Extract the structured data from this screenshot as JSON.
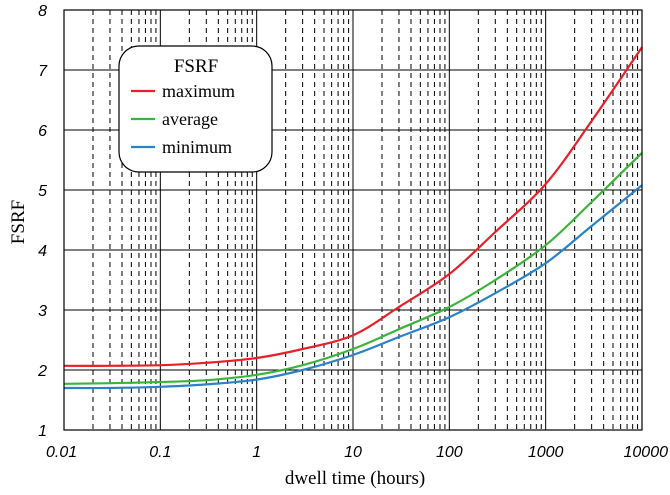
{
  "chart_data": {
    "type": "line",
    "title": "",
    "xlabel": "dwell time (hours)",
    "ylabel": "FSRF",
    "x_scale": "log",
    "xlim": [
      0.01,
      10000
    ],
    "ylim": [
      1,
      8
    ],
    "x_ticks": [
      "0.01",
      "0.1",
      "1",
      "10",
      "100",
      "1000",
      "10000"
    ],
    "y_ticks": [
      "1",
      "2",
      "3",
      "4",
      "5",
      "6",
      "7",
      "8"
    ],
    "grid": {
      "major": "solid",
      "minor_x": "dashed"
    },
    "legend": {
      "title": "FSRF",
      "placement": "top-left"
    },
    "series": [
      {
        "name": "maximum",
        "color": "#e8202a",
        "points": [
          [
            0.01,
            2.07
          ],
          [
            0.03,
            2.07
          ],
          [
            0.1,
            2.08
          ],
          [
            0.3,
            2.12
          ],
          [
            1,
            2.2
          ],
          [
            3,
            2.35
          ],
          [
            10,
            2.58
          ],
          [
            30,
            3.05
          ],
          [
            100,
            3.6
          ],
          [
            300,
            4.3
          ],
          [
            1000,
            5.1
          ],
          [
            3000,
            6.15
          ],
          [
            10000,
            7.38
          ]
        ]
      },
      {
        "name": "average",
        "color": "#3cb43c",
        "points": [
          [
            0.01,
            1.77
          ],
          [
            0.03,
            1.78
          ],
          [
            0.1,
            1.8
          ],
          [
            0.3,
            1.83
          ],
          [
            1,
            1.92
          ],
          [
            3,
            2.08
          ],
          [
            10,
            2.35
          ],
          [
            30,
            2.68
          ],
          [
            100,
            3.05
          ],
          [
            300,
            3.5
          ],
          [
            1000,
            4.08
          ],
          [
            3000,
            4.8
          ],
          [
            10000,
            5.62
          ]
        ]
      },
      {
        "name": "minimum",
        "color": "#2a82c8",
        "points": [
          [
            0.01,
            1.7
          ],
          [
            0.03,
            1.7
          ],
          [
            0.1,
            1.72
          ],
          [
            0.3,
            1.76
          ],
          [
            1,
            1.84
          ],
          [
            3,
            2.0
          ],
          [
            10,
            2.25
          ],
          [
            30,
            2.55
          ],
          [
            100,
            2.88
          ],
          [
            300,
            3.28
          ],
          [
            1000,
            3.78
          ],
          [
            3000,
            4.4
          ],
          [
            10000,
            5.08
          ]
        ]
      }
    ]
  }
}
